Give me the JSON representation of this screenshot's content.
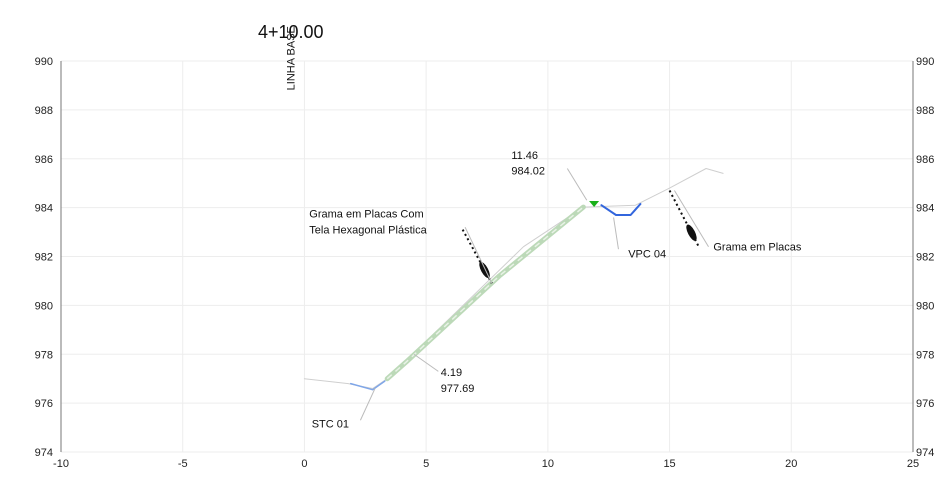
{
  "section": {
    "station": "4+10.00"
  },
  "chart_data": {
    "type": "line",
    "xlim": [
      -10,
      25
    ],
    "ylim": [
      974,
      990
    ],
    "x_ticks": [
      -10,
      -5,
      0,
      5,
      10,
      15,
      20,
      25
    ],
    "y_ticks": [
      974,
      976,
      978,
      980,
      982,
      984,
      986,
      988,
      990
    ],
    "grid": true,
    "series": [
      {
        "role": "terrain",
        "color": "#cfcfcf",
        "points": [
          [
            0,
            977.0
          ],
          [
            1.8,
            976.8
          ],
          [
            2.8,
            976.6
          ],
          [
            3.4,
            977.0
          ],
          [
            6,
            979.5
          ],
          [
            9,
            982.4
          ],
          [
            11.46,
            984.02
          ],
          [
            13.6,
            984.1
          ],
          [
            15,
            984.8
          ],
          [
            16.5,
            985.6
          ],
          [
            17.2,
            985.4
          ]
        ]
      },
      {
        "role": "slope-grass",
        "color": "#bcd9b8",
        "points": [
          [
            3.4,
            977.0
          ],
          [
            4.19,
            977.69
          ],
          [
            8.0,
            981.2
          ],
          [
            11.46,
            984.02
          ]
        ]
      },
      {
        "role": "drain-channel",
        "color": "#3366dd",
        "points": [
          [
            12.2,
            984.1
          ],
          [
            12.8,
            983.7
          ],
          [
            13.4,
            983.7
          ],
          [
            13.8,
            984.15
          ]
        ]
      },
      {
        "role": "stc-channel",
        "color": "#7fa6e8",
        "points": [
          [
            1.9,
            976.8
          ],
          [
            2.8,
            976.55
          ],
          [
            3.3,
            976.9
          ]
        ]
      }
    ],
    "markers": [
      {
        "type": "triangle",
        "color": "#19b019",
        "x": 11.9,
        "y": 984.15
      }
    ],
    "hatch_marks": [
      {
        "from": [
          6.5,
          983.1
        ],
        "to": [
          7.7,
          980.9
        ]
      },
      {
        "from": [
          15.0,
          984.7
        ],
        "to": [
          16.2,
          982.4
        ]
      }
    ],
    "annotations": [
      {
        "id": "baseline",
        "text": "LINHA BASE",
        "x": -0.4,
        "y": 988.8,
        "rotate": -90
      },
      {
        "id": "top-offset",
        "text": "11.46",
        "x": 8.5,
        "y": 986.0
      },
      {
        "id": "top-elev",
        "text": "984.02",
        "x": 8.5,
        "y": 985.35
      },
      {
        "id": "grass-plastic-1",
        "text": "Grama em Placas Com",
        "x": 0.2,
        "y": 983.6
      },
      {
        "id": "grass-plastic-2",
        "text": "Tela Hexagonal Plástica",
        "x": 0.2,
        "y": 982.95
      },
      {
        "id": "vpc",
        "text": "VPC 04",
        "x": 13.3,
        "y": 981.95
      },
      {
        "id": "grass",
        "text": "Grama em Placas",
        "x": 16.8,
        "y": 982.25
      },
      {
        "id": "bot-offset",
        "text": "4.19",
        "x": 5.6,
        "y": 977.1
      },
      {
        "id": "bot-elev",
        "text": "977.69",
        "x": 5.6,
        "y": 976.45
      },
      {
        "id": "stc",
        "text": "STC 01",
        "x": 0.3,
        "y": 975.0
      }
    ],
    "leaders": [
      {
        "from": [
          10.8,
          985.6
        ],
        "to": [
          11.6,
          984.3
        ]
      },
      {
        "from": [
          6.6,
          983.2
        ],
        "to": [
          7.7,
          980.9
        ]
      },
      {
        "from": [
          12.9,
          982.3
        ],
        "to": [
          12.7,
          983.6
        ]
      },
      {
        "from": [
          16.6,
          982.4
        ],
        "to": [
          15.2,
          984.7
        ]
      },
      {
        "from": [
          5.5,
          977.3
        ],
        "to": [
          4.5,
          978.0
        ]
      },
      {
        "from": [
          2.3,
          975.3
        ],
        "to": [
          2.9,
          976.6
        ]
      }
    ]
  }
}
